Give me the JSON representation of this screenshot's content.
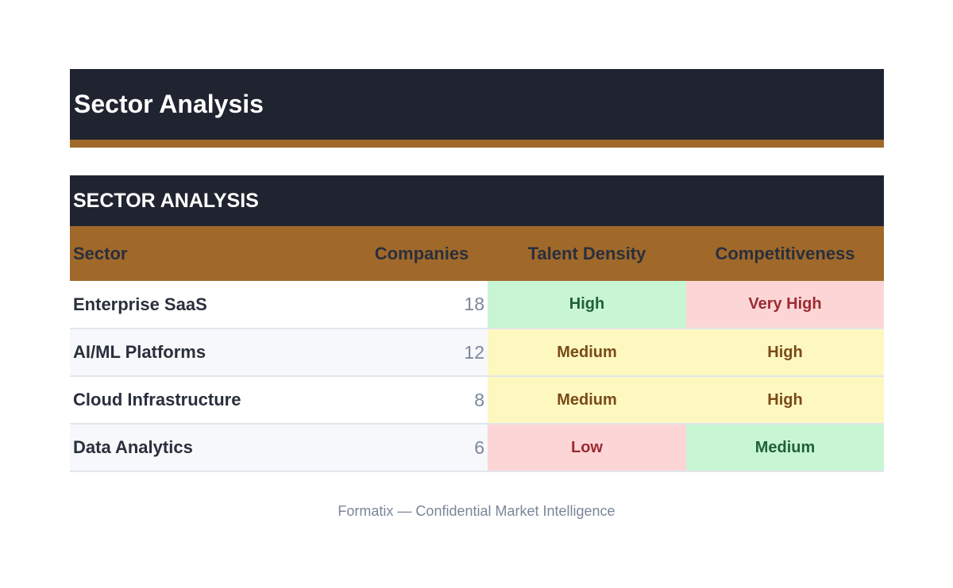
{
  "document": {
    "title": "Sector Analysis",
    "footer": "Formatix — Confidential Market Intelligence"
  },
  "table": {
    "heading": "SECTOR ANALYSIS",
    "columns": [
      "Sector",
      "Companies",
      "Talent Density",
      "Competitiveness"
    ],
    "rows": [
      {
        "sector": "Enterprise SaaS",
        "companies": "18",
        "talent_density": "High",
        "competitiveness": "Very High"
      },
      {
        "sector": "AI/ML Platforms",
        "companies": "12",
        "talent_density": "Medium",
        "competitiveness": "High"
      },
      {
        "sector": "Cloud Infrastructure",
        "companies": "8",
        "talent_density": "Medium",
        "competitiveness": "High"
      },
      {
        "sector": "Data Analytics",
        "companies": "6",
        "talent_density": "Low",
        "competitiveness": "Medium"
      }
    ]
  },
  "colors": {
    "header_dark": "#1f2430",
    "accent_bronze": "#a0692a",
    "level_green": "#c8f5d3",
    "level_yellow": "#fcf8c0",
    "level_red": "#fcd6d6"
  }
}
